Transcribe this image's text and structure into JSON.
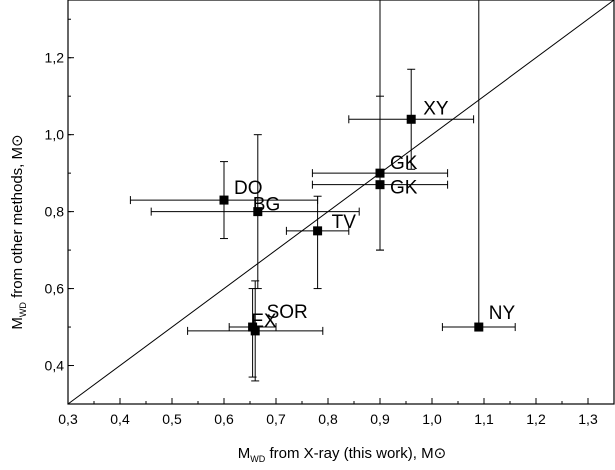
{
  "chart_data": {
    "type": "scatter",
    "xlabel": {
      "main": "M",
      "sub": "WD",
      "rest": " from X-ray (this work), M",
      "unit": "⊙"
    },
    "ylabel": {
      "main": "M",
      "sub": "WD",
      "rest": " from other methods, M",
      "unit": "⊙"
    },
    "xlim": [
      0.3,
      1.35
    ],
    "ylim": [
      0.3,
      1.35
    ],
    "xticks": [
      0.3,
      0.4,
      0.5,
      0.6,
      0.7,
      0.8,
      0.9,
      1.0,
      1.1,
      1.2,
      1.3
    ],
    "xtick_labels": [
      "0,3",
      "0,4",
      "0,5",
      "0,6",
      "0,7",
      "0,8",
      "0,9",
      "1,0",
      "1,1",
      "1,2",
      "1,3"
    ],
    "yticks": [
      0.4,
      0.6,
      0.8,
      1.0,
      1.2
    ],
    "ytick_labels": [
      "0,4",
      "0,6",
      "0,8",
      "1,0",
      "1,2"
    ],
    "reference_line": "y = x",
    "points": [
      {
        "label": "XY",
        "x": 0.96,
        "y": 1.04,
        "xerr": [
          0.84,
          1.08
        ],
        "yerr": [
          0.91,
          1.17
        ]
      },
      {
        "label": "GK",
        "x": 0.9,
        "y": 0.9,
        "xerr": [
          0.77,
          1.03
        ],
        "yerr": [
          0.7,
          1.35
        ]
      },
      {
        "label": "GK",
        "x": 0.9,
        "y": 0.87,
        "xerr": [
          0.77,
          1.03
        ],
        "yerr": [
          0.7,
          1.1
        ]
      },
      {
        "label": "DO",
        "x": 0.6,
        "y": 0.83,
        "xerr": [
          0.42,
          0.78
        ],
        "yerr": [
          0.73,
          0.93
        ]
      },
      {
        "label": "BG",
        "x": 0.665,
        "y": 0.8,
        "xerr": [
          0.46,
          0.86
        ],
        "yerr": [
          0.6,
          1.0
        ]
      },
      {
        "label": "TV",
        "x": 0.78,
        "y": 0.75,
        "xerr": [
          0.72,
          0.84
        ],
        "yerr": [
          0.6,
          0.84
        ]
      },
      {
        "label": "NY",
        "x": 1.09,
        "y": 0.5,
        "xerr": [
          1.02,
          1.16
        ],
        "yerr": [
          0.5,
          1.35
        ]
      },
      {
        "label": "SOR",
        "x": 0.655,
        "y": 0.5,
        "xerr": [
          0.61,
          0.7
        ],
        "yerr": [
          0.37,
          0.6
        ]
      },
      {
        "label": "EX",
        "x": 0.66,
        "y": 0.49,
        "xerr": [
          0.53,
          0.79
        ],
        "yerr": [
          0.36,
          0.62
        ]
      }
    ],
    "grid": false,
    "legend": "none"
  }
}
